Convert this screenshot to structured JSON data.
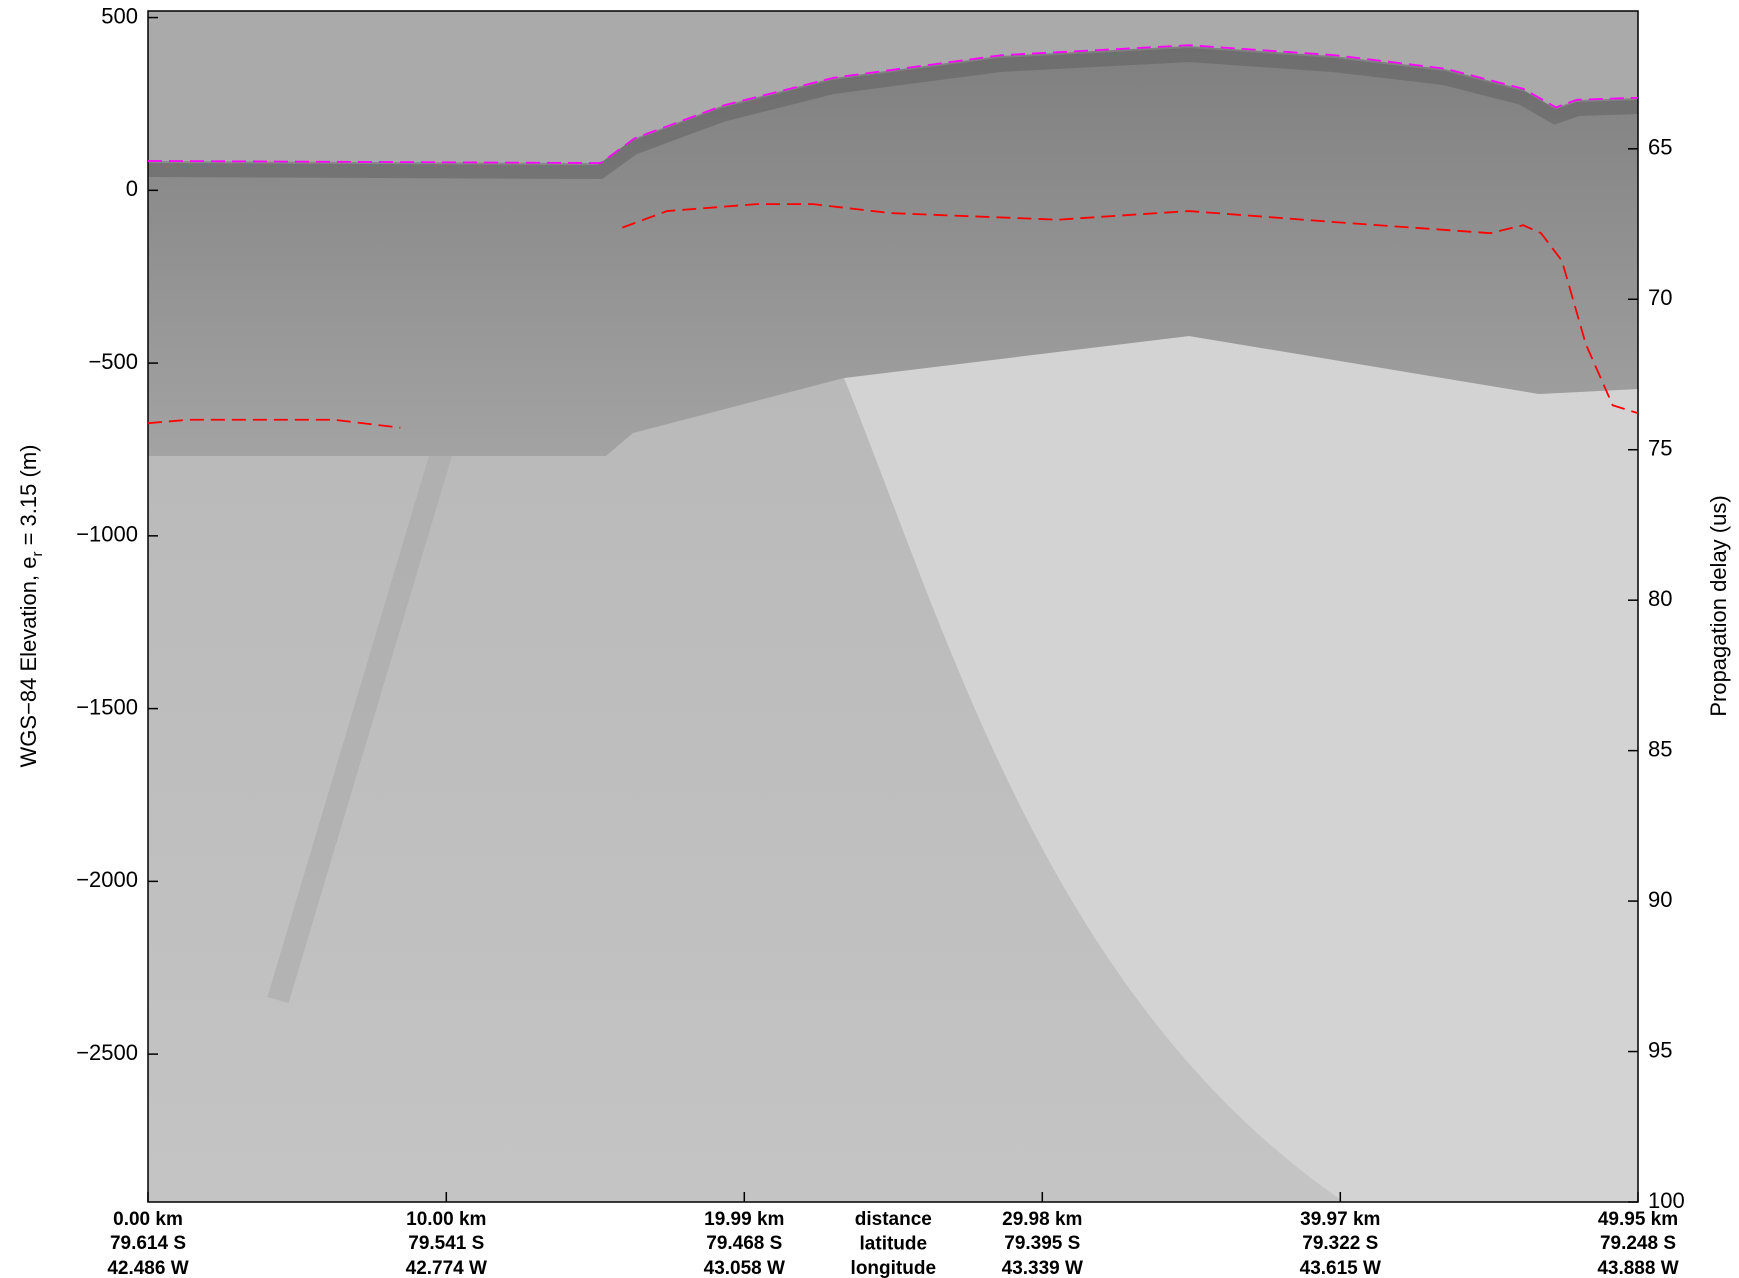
{
  "chart_data": {
    "type": "line",
    "ylabel_parts": [
      "WGS−84 Elevation, e",
      "r",
      " = 3.15 (m)"
    ],
    "y2label": "Propagation delay (us)",
    "xlim": [
      0,
      49.95
    ],
    "ylim": [
      -2928,
      519
    ],
    "y2lim": [
      60.42,
      100
    ],
    "yticks": [
      500,
      0,
      {
        "value": -500,
        "label": "−500"
      },
      {
        "value": -1000,
        "label": "−1000"
      },
      {
        "value": -1500,
        "label": "−1500"
      },
      {
        "value": -2000,
        "label": "−2000"
      },
      {
        "value": -2500,
        "label": "−2500"
      }
    ],
    "y2ticks": [
      65,
      70,
      75,
      80,
      85,
      90,
      95,
      100
    ],
    "xticks": [
      {
        "value": 0,
        "label": "0.00 km"
      },
      {
        "value": 10,
        "label": "10.00 km"
      },
      {
        "value": 19.99,
        "label": "19.99 km"
      },
      {
        "value": 29.98,
        "label": "29.98 km"
      },
      {
        "value": 39.97,
        "label": "39.97 km"
      },
      {
        "value": 49.95,
        "label": "49.95 km"
      }
    ],
    "xtick_latitudes": [
      "79.614 S",
      "79.541 S",
      "79.468 S",
      "79.395 S",
      "79.322 S",
      "79.248 S"
    ],
    "xtick_longitudes": [
      "42.486 W",
      "42.774 W",
      "43.058 W",
      "43.339 W",
      "43.615 W",
      "43.888 W"
    ],
    "x_row_labels": [
      "distance",
      "latitude",
      "longitude"
    ],
    "line_style": "dashed",
    "series": [
      {
        "color": "#ff00ff",
        "x": [
          0,
          15.18,
          16.3,
          19.3,
          23.0,
          28.6,
          34.9,
          39.8,
          43.5,
          46.1,
          47.2,
          47.9,
          49.95
        ],
        "values": [
          85,
          79,
          150,
          246,
          326,
          391,
          420,
          391,
          352,
          294,
          240,
          262,
          268
        ]
      },
      {
        "color": "#ff0000",
        "x": [
          0,
          1.38,
          6.23,
          8.46,
          null,
          15.9,
          17.4,
          20.4,
          22.3,
          24.9,
          30.5,
          34.9,
          39.8,
          45.0,
          46.1,
          46.7,
          47.4,
          48.2,
          49.1,
          49.95
        ],
        "values": [
          -674,
          -664,
          -664,
          -687,
          null,
          -108,
          -60,
          -40,
          -40,
          -66,
          -85,
          -60,
          -92,
          -124,
          -101,
          -124,
          -204,
          -445,
          -622,
          -645
        ]
      }
    ]
  }
}
